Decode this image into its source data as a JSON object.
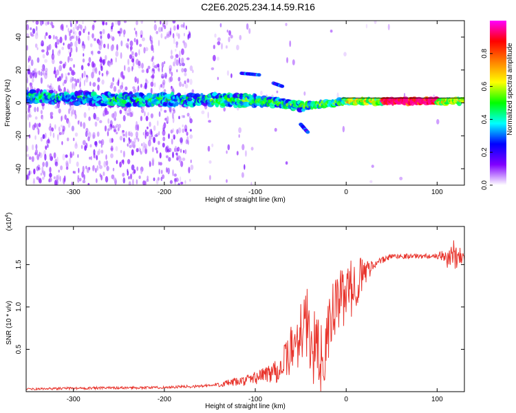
{
  "title": "C2E6.2025.234.14.59.R16",
  "chart_data": [
    {
      "type": "heatmap",
      "xlabel": "Height of straight line (km)",
      "ylabel": "Frequency (Hz)",
      "xlim": [
        -352,
        130
      ],
      "ylim": [
        -50,
        50
      ],
      "xticks": [
        -300,
        -200,
        -100,
        0,
        100
      ],
      "yticks": [
        -40,
        -20,
        0,
        20,
        40
      ],
      "colorbar": {
        "label": "Normalized spectral amplitude",
        "range": [
          0.0,
          1.0
        ],
        "ticks": [
          0.0,
          0.2,
          0.4,
          0.6,
          0.8
        ],
        "colormap": [
          "#ffffff",
          "#8000ff",
          "#0000ff",
          "#00ffff",
          "#00ff00",
          "#ffff00",
          "#ff8000",
          "#ff0000",
          "#ff00ff"
        ]
      },
      "main_band_center": [
        {
          "x": -350,
          "y": 4
        },
        {
          "x": -300,
          "y": 3
        },
        {
          "x": -250,
          "y": 2
        },
        {
          "x": -200,
          "y": 2
        },
        {
          "x": -150,
          "y": 2
        },
        {
          "x": -100,
          "y": 1
        },
        {
          "x": -70,
          "y": 0
        },
        {
          "x": -50,
          "y": -2
        },
        {
          "x": -30,
          "y": -1
        },
        {
          "x": 0,
          "y": 1
        },
        {
          "x": 50,
          "y": 1
        },
        {
          "x": 100,
          "y": 1
        },
        {
          "x": 130,
          "y": 1
        }
      ],
      "side_features": [
        {
          "x": [
            -115,
            -95
          ],
          "y": [
            18,
            17
          ]
        },
        {
          "x": [
            -80,
            -70
          ],
          "y": [
            12,
            10
          ]
        },
        {
          "x": [
            -50,
            -42
          ],
          "y": [
            -13,
            -18
          ]
        }
      ]
    },
    {
      "type": "line",
      "xlabel": "Height of straight line (km)",
      "ylabel": "SNR (10 * v/v)",
      "y_multiplier": "(x10",
      "y_multiplier_exp": "4",
      "y_multiplier_close": ")",
      "xlim": [
        -352,
        130
      ],
      "ylim": [
        0,
        1.95
      ],
      "xticks": [
        -300,
        -200,
        -100,
        0,
        100
      ],
      "yticks": [
        0.5,
        1.0,
        1.5
      ],
      "ytick_labels": [
        "0.5",
        "1.0",
        "1.5"
      ],
      "series": [
        {
          "color": "#e8342c",
          "envelope_x": [
            -352,
            -300,
            -200,
            -150,
            -110,
            -90,
            -70,
            -55,
            -45,
            -35,
            -25,
            -15,
            -5,
            5,
            15,
            30,
            50,
            80,
            100,
            110,
            118,
            125,
            130
          ],
          "envelope_y": [
            0.03,
            0.04,
            0.05,
            0.07,
            0.13,
            0.2,
            0.3,
            0.6,
            0.85,
            0.5,
            0.35,
            0.95,
            1.1,
            1.2,
            1.35,
            1.5,
            1.6,
            1.6,
            1.6,
            1.58,
            1.6,
            1.62,
            1.58
          ],
          "noise_amplitude": [
            0.01,
            0.015,
            0.015,
            0.02,
            0.06,
            0.1,
            0.2,
            0.35,
            0.45,
            0.45,
            0.4,
            0.35,
            0.35,
            0.35,
            0.25,
            0.05,
            0.03,
            0.03,
            0.03,
            0.12,
            0.2,
            0.1,
            0.08
          ]
        }
      ]
    }
  ]
}
